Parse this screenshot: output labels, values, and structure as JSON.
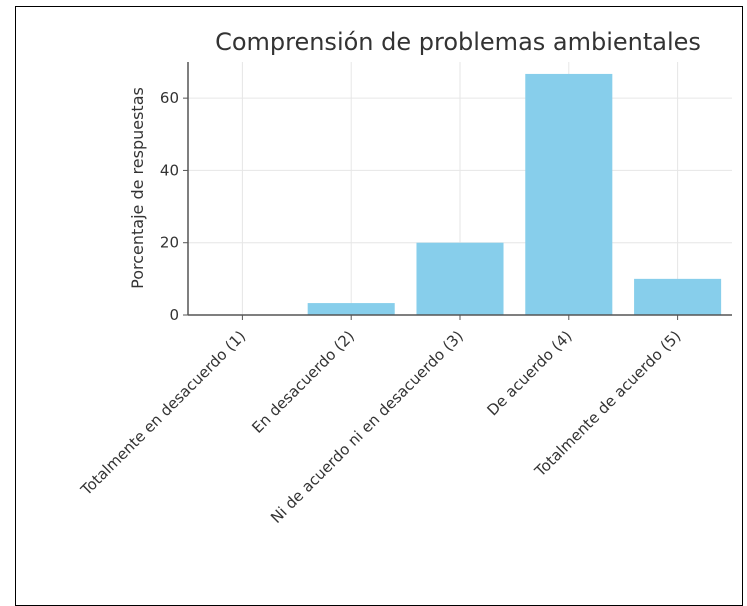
{
  "chart_data": {
    "type": "bar",
    "title": "Comprensión de problemas ambientales",
    "xlabel": "",
    "ylabel": "Porcentaje de respuestas",
    "categories": [
      "Totalmente en desacuerdo (1)",
      "En desacuerdo (2)",
      "Ni de acuerdo ni en desacuerdo (3)",
      "De acuerdo (4)",
      "Totalmente de acuerdo (5)"
    ],
    "values": [
      0,
      3.3,
      20,
      66.7,
      10
    ],
    "ylim": [
      0,
      70
    ],
    "yticks": [
      0,
      20,
      40,
      60
    ],
    "grid": true,
    "bar_color": "#87ceeb",
    "axis_color": "#555555",
    "grid_color": "#e6e6e6"
  }
}
